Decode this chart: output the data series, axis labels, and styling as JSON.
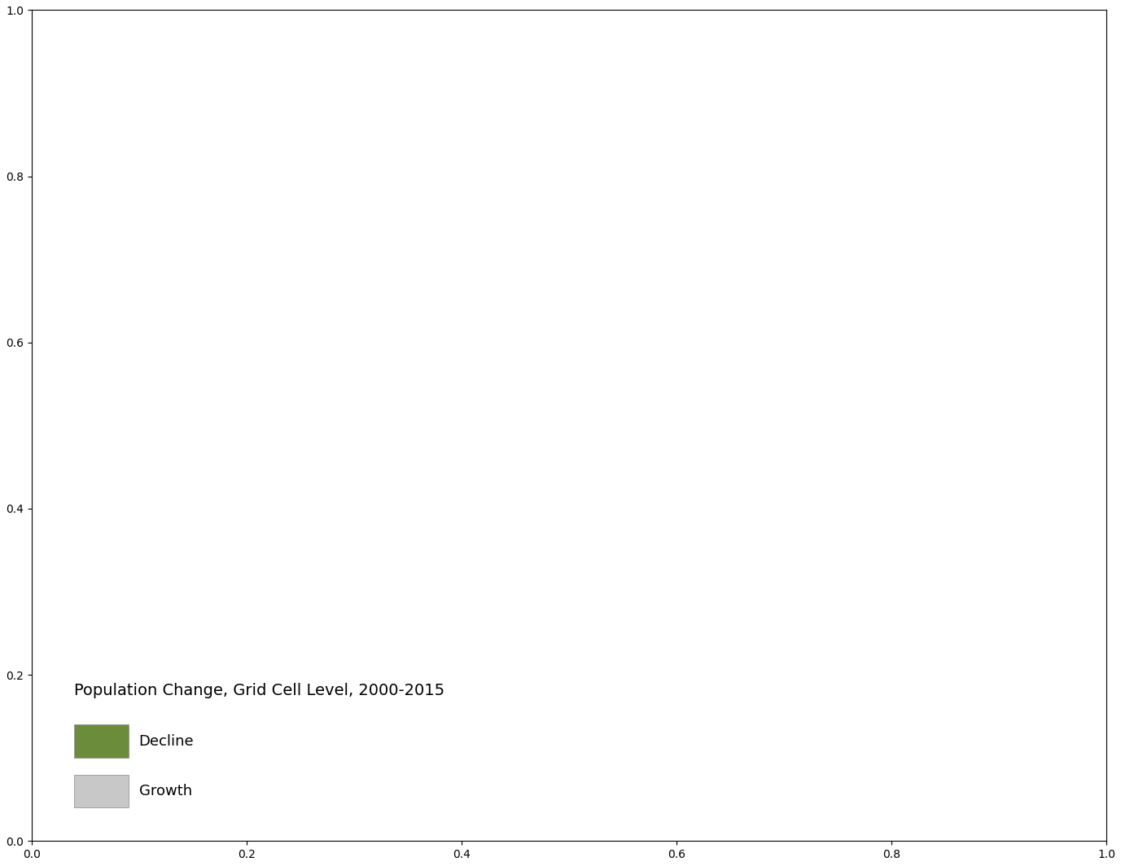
{
  "title": "Population Change, Grid Cell Level, 2000-2015",
  "decline_color": "#6b8c3a",
  "growth_color": "#c8c8c8",
  "ocean_color": "#ffffff",
  "background_color": "#ffffff",
  "legend_labels": [
    "Decline",
    "Growth"
  ],
  "legend_title_fontsize": 14,
  "legend_label_fontsize": 13,
  "figsize": [
    13.77,
    10.64
  ],
  "dpi": 100
}
